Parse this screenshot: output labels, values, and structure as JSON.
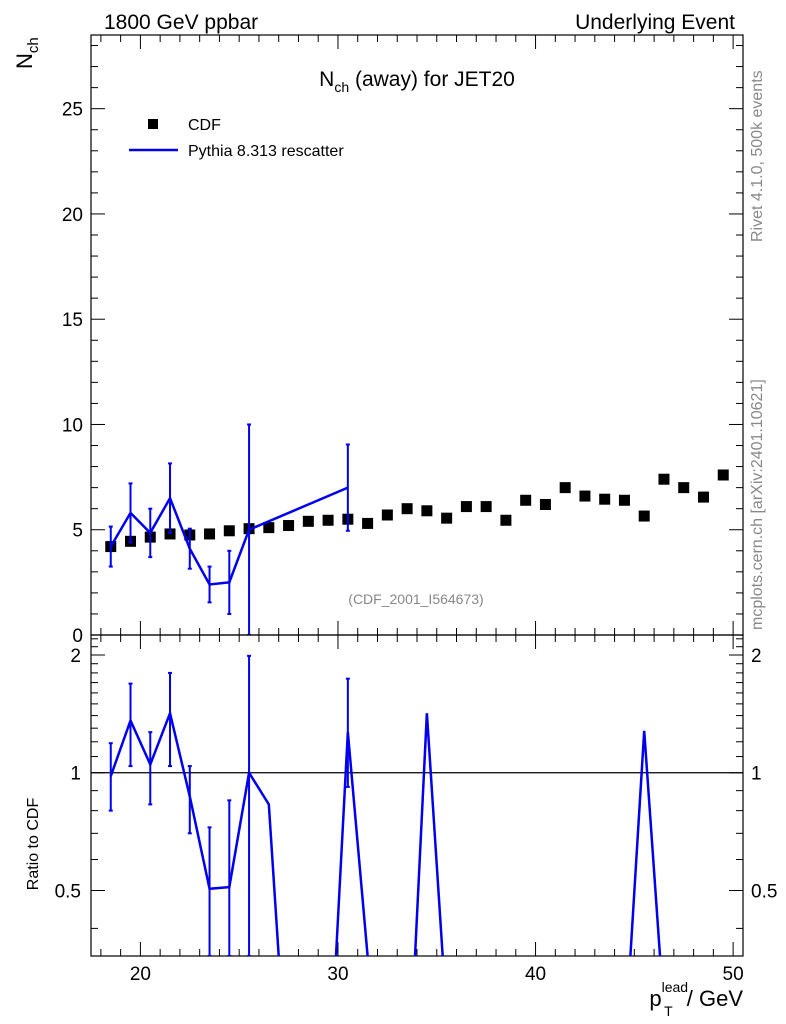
{
  "header": {
    "left": "1800 GeV ppbar",
    "right": "Underlying Event"
  },
  "side_text": {
    "top": "Rivet 4.1.0,  500k events",
    "bottom": "mcplots.cern.ch [arXiv:2401.10621]"
  },
  "watermark": "(CDF_2001_I564673)",
  "chart_data": [
    {
      "type": "scatter",
      "title_main": "N",
      "title_sub": "ch",
      "title_rest": " (away) for JET20",
      "ylabel_main": "N",
      "ylabel_sub": "ch",
      "xlim": [
        17.5,
        50.5
      ],
      "ylim": [
        0,
        28.5
      ],
      "yticks": [
        0,
        5,
        10,
        15,
        20,
        25
      ],
      "ytick_labels": [
        "0",
        "5",
        "10",
        "15",
        "20",
        "25"
      ],
      "legend": {
        "placement": "top-left",
        "data_label": "CDF",
        "mc_label": "Pythia 8.313 rescatter"
      },
      "series": [
        {
          "name": "CDF",
          "marker": "square",
          "color": "#000000",
          "x": [
            18.5,
            19.5,
            20.5,
            21.5,
            22.5,
            23.5,
            24.5,
            25.5,
            26.5,
            27.5,
            28.5,
            29.5,
            30.5,
            31.5,
            32.5,
            33.5,
            34.5,
            35.5,
            36.5,
            37.5,
            38.5,
            39.5,
            40.5,
            41.5,
            42.5,
            43.5,
            44.5,
            45.5,
            46.5,
            47.5,
            48.5,
            49.5
          ],
          "y": [
            4.2,
            4.45,
            4.65,
            4.8,
            4.75,
            4.8,
            4.95,
            5.05,
            5.1,
            5.2,
            5.4,
            5.45,
            5.5,
            5.3,
            5.7,
            6.0,
            5.9,
            5.55,
            6.1,
            6.1,
            5.45,
            6.4,
            6.2,
            7.0,
            6.6,
            6.45,
            6.4,
            5.65,
            7.4,
            7.0,
            6.55,
            7.6
          ]
        },
        {
          "name": "Pythia 8.313 rescatter",
          "marker": "line",
          "color": "#0000ee",
          "x": [
            18.5,
            19.5,
            20.5,
            21.5,
            22.5,
            23.5,
            24.5,
            25.5,
            30.5
          ],
          "y": [
            4.2,
            5.8,
            4.85,
            6.5,
            4.1,
            2.4,
            2.5,
            5.0,
            7.0
          ],
          "err": [
            0.95,
            1.4,
            1.15,
            1.65,
            0.95,
            0.85,
            1.5,
            5.0,
            2.05
          ]
        }
      ]
    },
    {
      "type": "line",
      "ylabel": "Ratio to CDF",
      "xlabel_main": "p",
      "xlabel_sub": "T",
      "xlabel_sup": "lead",
      "xlabel_rest": " / GeV",
      "xlim": [
        17.5,
        50.5
      ],
      "ylim": [
        0.34,
        2.25
      ],
      "yscale": "log",
      "reference": 1.0,
      "xticks": [
        20,
        30,
        40,
        50
      ],
      "xtick_labels": [
        "20",
        "30",
        "40",
        "50"
      ],
      "yticks": [
        0.5,
        1,
        2
      ],
      "ytick_labels": [
        "0.5",
        "1",
        "2"
      ],
      "series": [
        {
          "name": "Pythia 8.313 rescatter / CDF",
          "color": "#0000ee",
          "x": [
            18.5,
            19.5,
            20.5,
            21.5,
            22.5,
            23.5,
            24.5,
            25.5,
            26.5,
            27.0
          ],
          "y": [
            0.98,
            1.36,
            1.05,
            1.42,
            0.87,
            0.505,
            0.51,
            1.0,
            0.83,
            0.34
          ],
          "err_lo": [
            0.18,
            0.32,
            0.22,
            0.38,
            0.17,
            0.17,
            0.3,
            0.66,
            0.0,
            0.0
          ],
          "err_hi": [
            0.21,
            0.33,
            0.22,
            0.38,
            0.17,
            0.22,
            0.34,
            0.99,
            0.0,
            0.0
          ]
        },
        {
          "name": "spike-30",
          "color": "#0000ee",
          "x": [
            29.9,
            30.5,
            31.5
          ],
          "y": [
            0.34,
            1.27,
            0.34
          ],
          "err_lo": [
            0.0,
            0.35,
            0.0
          ],
          "err_hi": [
            0.0,
            0.47,
            0.0
          ]
        },
        {
          "name": "spike-34",
          "color": "#0000ee",
          "x": [
            33.9,
            34.5,
            35.3
          ],
          "y": [
            0.34,
            1.42,
            0.34
          ],
          "err_lo": [
            0.0,
            0.0,
            0.0
          ],
          "err_hi": [
            0.0,
            0.0,
            0.0
          ]
        },
        {
          "name": "spike-45",
          "color": "#0000ee",
          "x": [
            44.8,
            45.5,
            46.3
          ],
          "y": [
            0.34,
            1.28,
            0.34
          ],
          "err_lo": [
            0.0,
            0.0,
            0.0
          ],
          "err_hi": [
            0.0,
            0.0,
            0.0
          ]
        }
      ]
    }
  ]
}
